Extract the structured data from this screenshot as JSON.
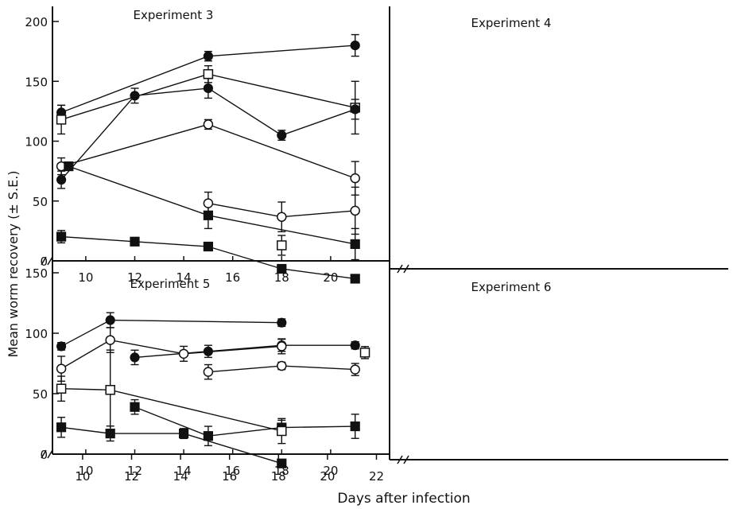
{
  "figure": {
    "ylabel": "Mean worm recovery (± S.E.)",
    "xlabel": "Days after infection"
  },
  "chart_data": [
    {
      "type": "scatter",
      "title": "Experiment 3",
      "xlabel": "Days after infection",
      "ylabel": "Mean worm recovery (± S.E.)",
      "xlim": [
        8.5,
        22.5
      ],
      "ylim": [
        0,
        200
      ],
      "yticks": [
        0,
        50,
        100,
        150,
        200
      ],
      "xticks": [
        10,
        12,
        14,
        16,
        18,
        20
      ],
      "series": [
        {
          "marker": "filled-circle",
          "x": [
            9,
            15,
            21
          ],
          "y": [
            124,
            171,
            180
          ],
          "err": [
            6,
            4,
            9
          ]
        },
        {
          "marker": "open-square",
          "x": [
            9,
            15,
            21
          ],
          "y": [
            118,
            156,
            128
          ],
          "err": [
            12,
            7,
            22
          ]
        },
        {
          "marker": "open-circle",
          "x": [
            9,
            15,
            21
          ],
          "y": [
            79,
            114,
            69
          ],
          "err": [
            7,
            4,
            14
          ]
        },
        {
          "marker": "filled-square",
          "x": [
            9.3,
            15,
            21
          ],
          "y": [
            79,
            38,
            14
          ],
          "err": [
            0,
            11,
            13
          ]
        }
      ]
    },
    {
      "type": "scatter",
      "title": "Experiment 4",
      "xlabel": "Days after infection",
      "ylabel": "Mean worm recovery (± S.E.)",
      "xlim": [
        8.5,
        22.5
      ],
      "ylim": [
        0,
        200
      ],
      "series": [
        {
          "marker": "filled-circle",
          "x": [
            9,
            12,
            15,
            18,
            21
          ],
          "y": [
            72,
            140,
            146,
            108,
            129
          ],
          "err": [
            7,
            6,
            8,
            4,
            8
          ]
        },
        {
          "marker": "open-circle",
          "x": [
            15,
            18,
            21
          ],
          "y": [
            53,
            42,
            47
          ],
          "err": [
            9,
            12,
            19
          ]
        },
        {
          "marker": "open-square",
          "x": [
            18
          ],
          "y": [
            19
          ],
          "err": [
            8
          ]
        },
        {
          "marker": "filled-square",
          "x": [
            9,
            12,
            15,
            18,
            21
          ],
          "y": [
            26,
            22,
            18,
            0,
            -8
          ],
          "err": [
            5,
            3,
            2,
            3,
            0
          ]
        }
      ]
    },
    {
      "type": "scatter",
      "title": "Experiment 5",
      "xlabel": "Days after infection",
      "ylabel": "Mean worm recovery (± S.E.)",
      "xlim": [
        8.5,
        22.5
      ],
      "ylim": [
        0,
        150
      ],
      "yticks": [
        0,
        50,
        100,
        150
      ],
      "xticks": [
        10,
        12,
        14,
        16,
        18,
        20
      ],
      "series": [
        {
          "marker": "filled-circle",
          "x": [
            12,
            15,
            18,
            21
          ],
          "y": [
            80,
            85,
            90,
            90
          ],
          "err": [
            6,
            5,
            5,
            3
          ]
        },
        {
          "marker": "open-circle",
          "x": [
            15,
            18,
            21
          ],
          "y": [
            68,
            73,
            70
          ],
          "err": [
            6,
            3,
            5
          ]
        },
        {
          "marker": "open-square",
          "x": [
            21.4
          ],
          "y": [
            84
          ],
          "err": [
            5
          ]
        },
        {
          "marker": "filled-square",
          "x": [
            12,
            15,
            18,
            21
          ],
          "y": [
            39,
            15,
            22,
            23
          ],
          "err": [
            6,
            8,
            6,
            10
          ]
        }
      ]
    },
    {
      "type": "scatter",
      "title": "Experiment 6",
      "xlabel": "Days after infection",
      "ylabel": "Mean worm recovery (± S.E.)",
      "xlim": [
        8.5,
        22.5
      ],
      "ylim": [
        0,
        150
      ],
      "xticks": [
        10,
        12,
        14,
        16,
        18,
        20,
        22
      ],
      "series": [
        {
          "marker": "filled-circle",
          "x": [
            9,
            11,
            18
          ],
          "y": [
            91,
            112,
            110
          ],
          "err": [
            3,
            6,
            3
          ]
        },
        {
          "marker": "open-circle",
          "x": [
            9,
            11,
            14,
            18
          ],
          "y": [
            73,
            96,
            85,
            91
          ],
          "err": [
            10,
            10,
            6,
            6
          ]
        },
        {
          "marker": "open-square",
          "x": [
            9,
            11,
            18
          ],
          "y": [
            57,
            56,
            23
          ],
          "err": [
            10,
            32,
            10
          ]
        },
        {
          "marker": "filled-square",
          "x": [
            9,
            11,
            14,
            18
          ],
          "y": [
            26,
            21,
            21,
            -3
          ],
          "err": [
            8,
            6,
            4,
            0
          ]
        }
      ]
    }
  ]
}
